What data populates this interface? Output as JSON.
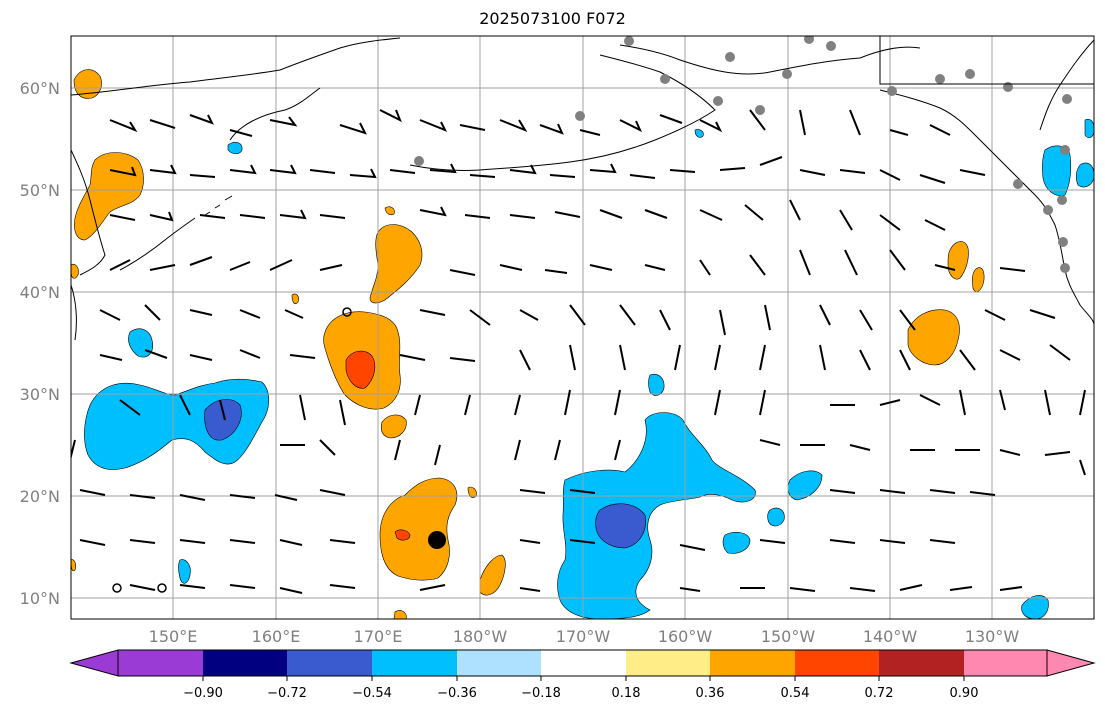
{
  "title": "2025073100 F072",
  "map": {
    "lat_labels": [
      "60°N",
      "50°N",
      "40°N",
      "30°N",
      "20°N",
      "10°N"
    ],
    "lon_labels": [
      "150°E",
      "160°E",
      "170°E",
      "180°W",
      "170°W",
      "160°W",
      "150°W",
      "140°W",
      "130°W"
    ],
    "gridline_color": "#a0a0a0",
    "label_color": "#808080",
    "barb_color": "#000000",
    "station_marker_color": "#808080",
    "storm_marker_color": "#000000"
  },
  "colorbar": {
    "ticks": [
      "−0.90",
      "−0.72",
      "−0.54",
      "−0.36",
      "−0.18",
      "0.18",
      "0.36",
      "0.54",
      "0.72",
      "0.90"
    ],
    "under_color": "#9a3bd6",
    "over_color": "#ff88b0",
    "colors": [
      "#000080",
      "#3a5bd0",
      "#00bfff",
      "#aee0ff",
      "#ffffff",
      "#ffee88",
      "#ffa500",
      "#ff4500",
      "#b22222"
    ]
  },
  "fill_colors": {
    "blue_light": "#00bfff",
    "blue_mid": "#3a5bd0",
    "orange": "#ffa500",
    "red_orange": "#ff4500"
  }
}
